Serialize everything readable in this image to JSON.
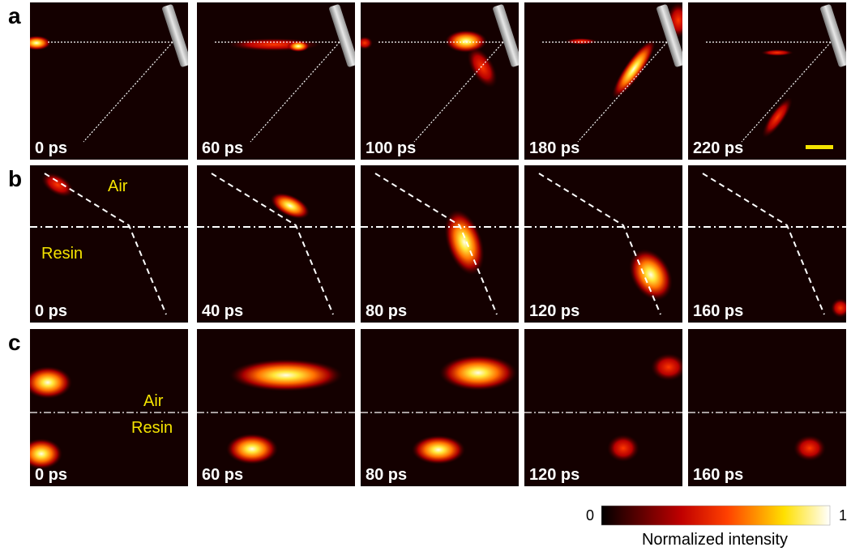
{
  "rows": [
    {
      "label": "a",
      "times": [
        "0 ps",
        "60 ps",
        "100 ps",
        "180 ps",
        "220 ps"
      ]
    },
    {
      "label": "b",
      "times": [
        "0 ps",
        "40 ps",
        "80 ps",
        "120 ps",
        "160 ps"
      ],
      "upper_medium": "Air",
      "lower_medium": "Resin"
    },
    {
      "label": "c",
      "times": [
        "0 ps",
        "60 ps",
        "80 ps",
        "120 ps",
        "160 ps"
      ],
      "upper_medium": "Air",
      "lower_medium": "Resin"
    }
  ],
  "colorbar": {
    "min": 0,
    "max": 1,
    "title": "Normalized intensity"
  }
}
